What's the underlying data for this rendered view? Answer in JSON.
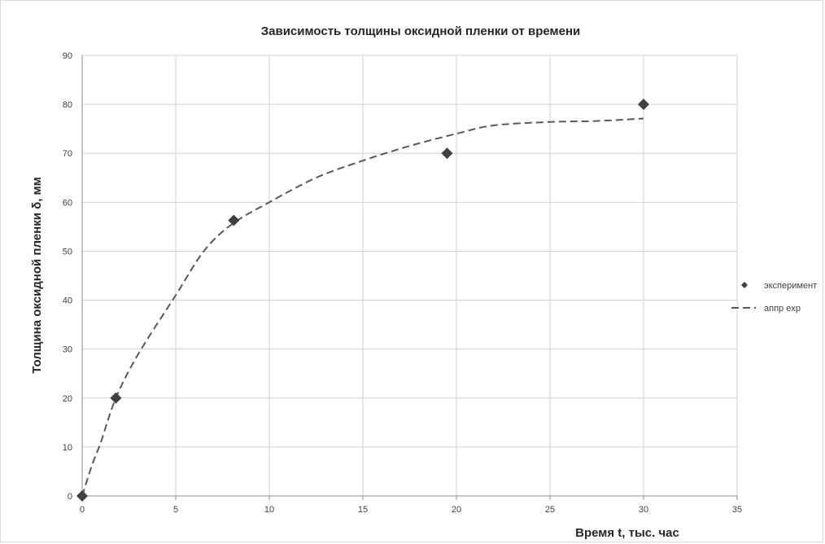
{
  "chart_data": {
    "type": "scatter",
    "title": "Зависимость толщины оксидной пленки от времени",
    "xlabel": "Время t, тыс. час",
    "ylabel": "Толщина оксидной пленки δ, мм",
    "xlim": [
      0,
      35
    ],
    "ylim": [
      0,
      90
    ],
    "xticks": [
      0,
      5,
      10,
      15,
      20,
      25,
      30,
      35
    ],
    "yticks": [
      0,
      10,
      20,
      30,
      40,
      50,
      60,
      70,
      80,
      90
    ],
    "grid": true,
    "legend_position": "right",
    "series": [
      {
        "name": "эксперимент",
        "kind": "markers",
        "marker": "diamond",
        "color": "#404040",
        "x": [
          0,
          1.8,
          8.1,
          19.5,
          30
        ],
        "y": [
          0,
          20,
          56.3,
          70,
          80
        ]
      },
      {
        "name": "аппр exp",
        "kind": "dashed-line",
        "color": "#595959",
        "x": [
          0,
          0.5,
          1,
          1.8,
          3,
          5,
          6.5,
          8,
          10,
          12.5,
          15,
          17.5,
          20,
          22,
          25,
          27.5,
          30
        ],
        "y": [
          0,
          6,
          11,
          20,
          29,
          41,
          50,
          55.5,
          60,
          65,
          68.5,
          71.5,
          74,
          75.7,
          76.4,
          76.6,
          77.1
        ]
      }
    ]
  }
}
